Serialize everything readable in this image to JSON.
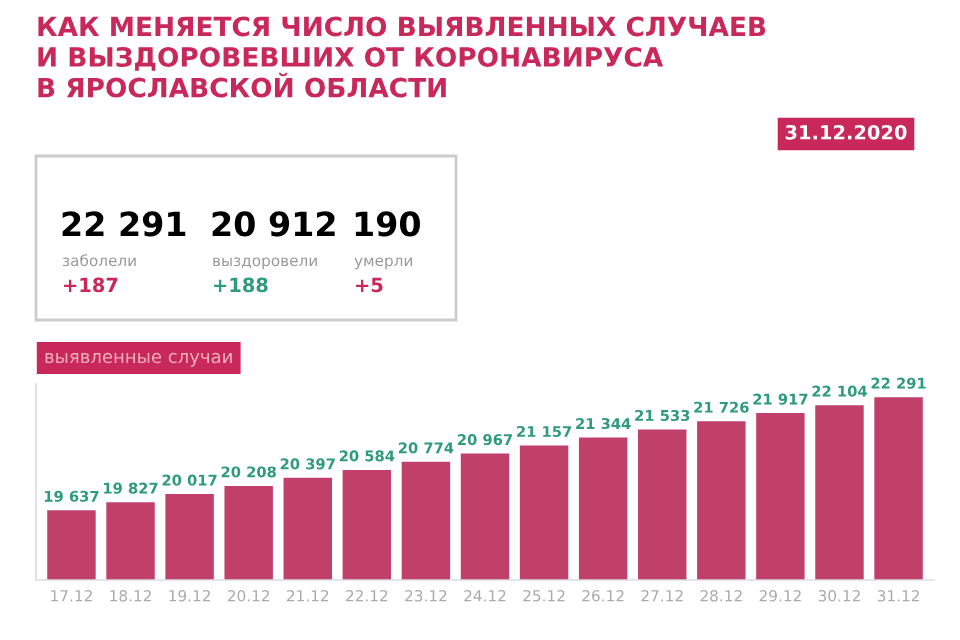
{
  "chart_data": {
    "type": "bar",
    "title": "КАК МЕНЯЕТСЯ ЧИСЛО ВЫЯВЛЕННЫХ СЛУЧАЕВ\nИ ВЫЗДОРОВЕВШИХ ОТ КОРОНАВИРУСА\nВ ЯРОСЛАВСКОЙ ОБЛАСТИ",
    "subtitle": "выявленные случаи",
    "annotations": [
      "22 291",
      "заболели",
      "+187",
      "20 912",
      "выздоровели",
      "+188",
      "190",
      "умерли",
      "+5",
      "31.12.2020"
    ],
    "categories": [
      "17.12",
      "18.12",
      "19.12",
      "20.12",
      "21.12",
      "22.12",
      "23.12",
      "24.12",
      "25.12",
      "26.12",
      "27.12",
      "28.12",
      "29.12",
      "30.12",
      "31.12"
    ],
    "values": [
      19637,
      19827,
      20017,
      20208,
      20397,
      20584,
      20774,
      20967,
      21157,
      21344,
      21533,
      21726,
      21917,
      22104,
      22291
    ],
    "color": "#c0406a",
    "data_labels": true,
    "ylim": [
      18000,
      22600
    ],
    "tick_labels": "x",
    "grid": false,
    "legend": false
  }
}
